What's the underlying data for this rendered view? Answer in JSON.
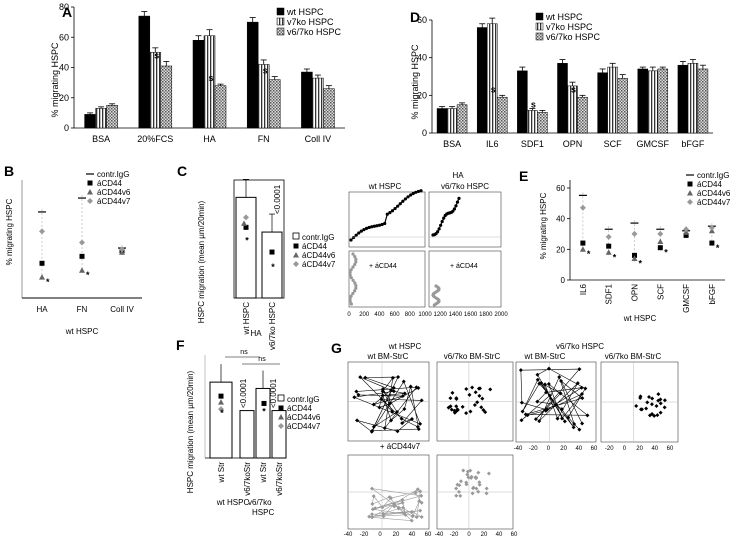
{
  "chart_data": [
    {
      "panel": "A",
      "type": "bar",
      "ylabel": "% migrating HSPC",
      "ylim": [
        0,
        80
      ],
      "yticks": [
        "0",
        "20",
        "40",
        "60",
        "80"
      ],
      "categories": [
        "BSA",
        "20%FCS",
        "HA",
        "FN",
        "Coll IV"
      ],
      "series": [
        {
          "name": "wt HSPC",
          "pattern": "black",
          "values": [
            9,
            74,
            58,
            70,
            37
          ],
          "errors": [
            1,
            3,
            3,
            3,
            2
          ]
        },
        {
          "name": "v7ko HSPC",
          "pattern": "vlines",
          "values": [
            13,
            50,
            61,
            42,
            33
          ],
          "errors": [
            1,
            3,
            4,
            3,
            2
          ]
        },
        {
          "name": "v6/7ko HSPC",
          "pattern": "dots",
          "values": [
            15,
            41,
            28,
            32,
            26
          ],
          "errors": [
            1,
            3,
            1,
            2,
            2
          ]
        }
      ],
      "annotations": [
        "s",
        "s",
        "s",
        "s",
        "s"
      ]
    },
    {
      "panel": "D",
      "type": "bar",
      "ylabel": "% migrating HSPC",
      "ylim": [
        0,
        60
      ],
      "yticks": [
        "0",
        "20",
        "40",
        "60"
      ],
      "categories": [
        "BSA",
        "IL6",
        "SDF1",
        "OPN",
        "SCF",
        "GMCSF",
        "bFGF"
      ],
      "series": [
        {
          "name": "wt HSPC",
          "pattern": "black",
          "values": [
            13,
            56,
            33,
            37,
            32,
            34,
            36
          ],
          "errors": [
            1,
            2,
            2,
            2,
            2,
            1,
            2
          ]
        },
        {
          "name": "v7ko HSPC",
          "pattern": "vlines",
          "values": [
            13,
            58,
            12,
            25,
            35,
            33,
            37
          ],
          "errors": [
            1,
            3,
            1,
            2,
            2,
            2,
            2
          ]
        },
        {
          "name": "v6/7ko HSPC",
          "pattern": "dots",
          "values": [
            15,
            19,
            11,
            19,
            29,
            34,
            34
          ],
          "errors": [
            1,
            1,
            1,
            1,
            2,
            1,
            2
          ]
        }
      ],
      "annotations": [
        "s",
        "s",
        "s",
        "s",
        "s"
      ]
    },
    {
      "panel": "B",
      "type": "scatter",
      "ylabel": "% migrating HSPC",
      "categories": [
        "HA",
        "FN",
        "Coll IV"
      ],
      "group_label": "wt HSPC",
      "legend": [
        "contr.IgG",
        "áCD44",
        "áCD44v6",
        "áCD44v7"
      ],
      "series": [
        {
          "name": "contr.IgG",
          "values": [
            62,
            72,
            36
          ]
        },
        {
          "name": "áCD44",
          "values": [
            25,
            30,
            34
          ]
        },
        {
          "name": "áCD44v6",
          "values": [
            15,
            20,
            33
          ]
        },
        {
          "name": "áCD44v7",
          "values": [
            48,
            40,
            35
          ]
        }
      ],
      "annotations": [
        "*",
        "*",
        "*",
        "*",
        "*",
        "*"
      ]
    },
    {
      "panel": "C",
      "type": "bar",
      "ylabel": "HSPC migration (mean µm/20min)",
      "categories": [
        "wt HSPC",
        "v6/7ko HSPC"
      ],
      "group_label": "HA",
      "values": [
        14.5,
        9.5
      ],
      "legend": [
        "contr.IgG",
        "áCD44",
        "áCD44v6",
        "áCD44v7"
      ],
      "pvalue": "<0.0001",
      "annotations": [
        "*",
        "*"
      ]
    },
    {
      "panel": "E",
      "type": "scatter",
      "ylabel": "% migrating HSPC",
      "categories": [
        "IL6",
        "SDF1",
        "OPN",
        "SCF",
        "GMCSF",
        "bFGF"
      ],
      "group_label": "wt HSPC",
      "yticks": [
        "0",
        "20",
        "40",
        "60"
      ],
      "legend": [
        "contr.IgG",
        "áCD44",
        "áCD44v6",
        "áCD44v7"
      ],
      "series": [
        {
          "name": "contr.IgG",
          "values": [
            55,
            33,
            37,
            33,
            32,
            35
          ]
        },
        {
          "name": "áCD44",
          "values": [
            24,
            22,
            16,
            21,
            29,
            24
          ]
        },
        {
          "name": "áCD44v6",
          "values": [
            20,
            18,
            14,
            25,
            31,
            32
          ]
        },
        {
          "name": "áCD44v7",
          "values": [
            47,
            28,
            30,
            30,
            33,
            34
          ]
        }
      ],
      "annotations": [
        "*",
        "*",
        "*",
        "*",
        "*",
        "*",
        "*"
      ]
    },
    {
      "panel": "F",
      "type": "bar",
      "ylabel": "HSPC migration (mean µm/20min)",
      "categories": [
        "wt Str",
        "v6/7koStr",
        "wt Str",
        "v6/7koStr"
      ],
      "groups": [
        "wt HSPC",
        "v6/7ko HSPC"
      ],
      "values": [
        1.2,
        0.75,
        1.1,
        0.75
      ],
      "legend": [
        "contr.IgG",
        "áCD44",
        "áCD44v6",
        "áCD44v7"
      ],
      "pvalues": [
        "<0.0001",
        "<0.0001"
      ],
      "ns": [
        "ns",
        "ns"
      ],
      "annotations": [
        "*",
        "*"
      ]
    }
  ],
  "panel_labels": {
    "A": "A",
    "B": "B",
    "C": "C",
    "D": "D",
    "E": "E",
    "F": "F",
    "G": "G"
  },
  "tracks_HA": {
    "title": "HA",
    "cols": [
      "wt HSPC",
      "v6/7ko HSPC"
    ],
    "treated_label": "+ áCD44",
    "xticks": [
      "0",
      "200",
      "400",
      "600",
      "800",
      "1000",
      "1200",
      "1400",
      "1600",
      "1800",
      "2000"
    ]
  },
  "tracks_G": {
    "group_wt": "wt HSPC",
    "group_ko": "v6/7ko HSPC",
    "col_wt": "wt  BM-StrC",
    "col_ko": "v6/7ko BM-StrC",
    "col_wt2": "wt BM-StrC",
    "col_ko2": "v6/7ko BM-StrC",
    "treated_label": "+ áCD44v7",
    "axticks": [
      "-40",
      "-20",
      "0",
      "20",
      "40",
      "60"
    ],
    "xticks_right": [
      "-40",
      "-20",
      "0",
      "20",
      "40",
      "60",
      "-20",
      "0",
      "20",
      "40",
      "60"
    ]
  }
}
